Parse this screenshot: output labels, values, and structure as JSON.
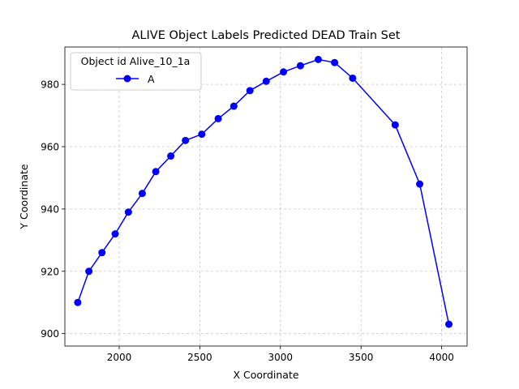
{
  "chart_data": {
    "type": "line",
    "title": "ALIVE Object Labels Predicted DEAD Train Set",
    "xlabel": "X Coordinate",
    "ylabel": "Y Coordinate",
    "xlim": [
      1663,
      4158
    ],
    "ylim": [
      896,
      992
    ],
    "xticks": [
      2000,
      2500,
      3000,
      3500,
      4000
    ],
    "yticks": [
      900,
      920,
      940,
      960,
      980
    ],
    "grid": true,
    "legend": {
      "title": "Object id Alive_10_1a",
      "placement": "top-left"
    },
    "series": [
      {
        "name": "A",
        "color": "#0000ff",
        "marker": "circle",
        "x": [
          1743,
          1812,
          1893,
          1975,
          2057,
          2143,
          2227,
          2320,
          2411,
          2512,
          2614,
          2711,
          2811,
          2912,
          3019,
          3124,
          3235,
          3336,
          3448,
          3712,
          3864,
          4045
        ],
        "y": [
          910,
          920,
          926,
          932,
          939,
          945,
          952,
          957,
          962,
          964,
          969,
          973,
          978,
          981,
          984,
          986,
          988,
          987,
          982,
          967,
          948,
          903
        ]
      }
    ]
  }
}
